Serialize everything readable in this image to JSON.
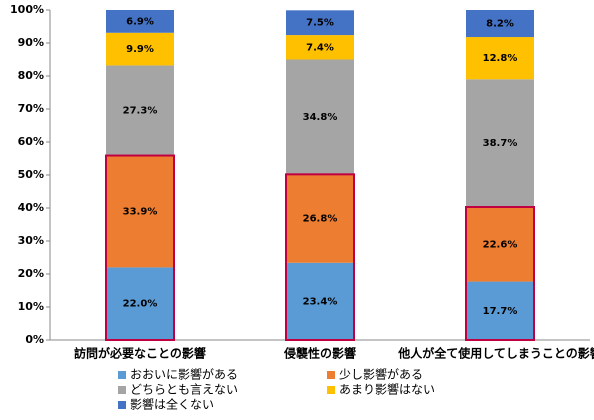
{
  "chart_data": {
    "type": "stacked_bar",
    "categories": [
      "訪問が必要なことの影響",
      "侵襲性の影響",
      "他人が全て使用してしまうことの影響"
    ],
    "series": [
      {
        "name": "おおいに影響がある",
        "color": "#5b9bd5",
        "values": [
          22.0,
          23.4,
          17.7
        ],
        "value_labels": [
          "22.0%",
          "23.4%",
          "17.7%"
        ]
      },
      {
        "name": "少し影響がある",
        "color": "#ed7d31",
        "values": [
          33.9,
          26.8,
          22.6
        ],
        "value_labels": [
          "33.9%",
          "26.8%",
          "22.6%"
        ]
      },
      {
        "name": "どちらとも言えない",
        "color": "#a5a5a5",
        "values": [
          27.3,
          34.8,
          38.7
        ],
        "value_labels": [
          "27.3%",
          "34.8%",
          "38.7%"
        ]
      },
      {
        "name": "あまり影響はない",
        "color": "#ffc000",
        "values": [
          9.9,
          7.4,
          12.8
        ],
        "value_labels": [
          "9.9%",
          "7.4%",
          "12.8%"
        ]
      },
      {
        "name": "影響は全くない",
        "color": "#4472c4",
        "values": [
          6.9,
          7.5,
          8.2
        ],
        "value_labels": [
          "6.9%",
          "7.5%",
          "8.2%"
        ]
      }
    ],
    "ylim": [
      0,
      100
    ],
    "yticks": [
      {
        "value": 0,
        "label": "0%"
      },
      {
        "value": 10,
        "label": "10%"
      },
      {
        "value": 20,
        "label": "20%"
      },
      {
        "value": 30,
        "label": "30%"
      },
      {
        "value": 40,
        "label": "40%"
      },
      {
        "value": 50,
        "label": "50%"
      },
      {
        "value": 60,
        "label": "60%"
      },
      {
        "value": 70,
        "label": "70%"
      },
      {
        "value": 80,
        "label": "80%"
      },
      {
        "value": 90,
        "label": "90%"
      },
      {
        "value": 100,
        "label": "100%"
      }
    ]
  }
}
